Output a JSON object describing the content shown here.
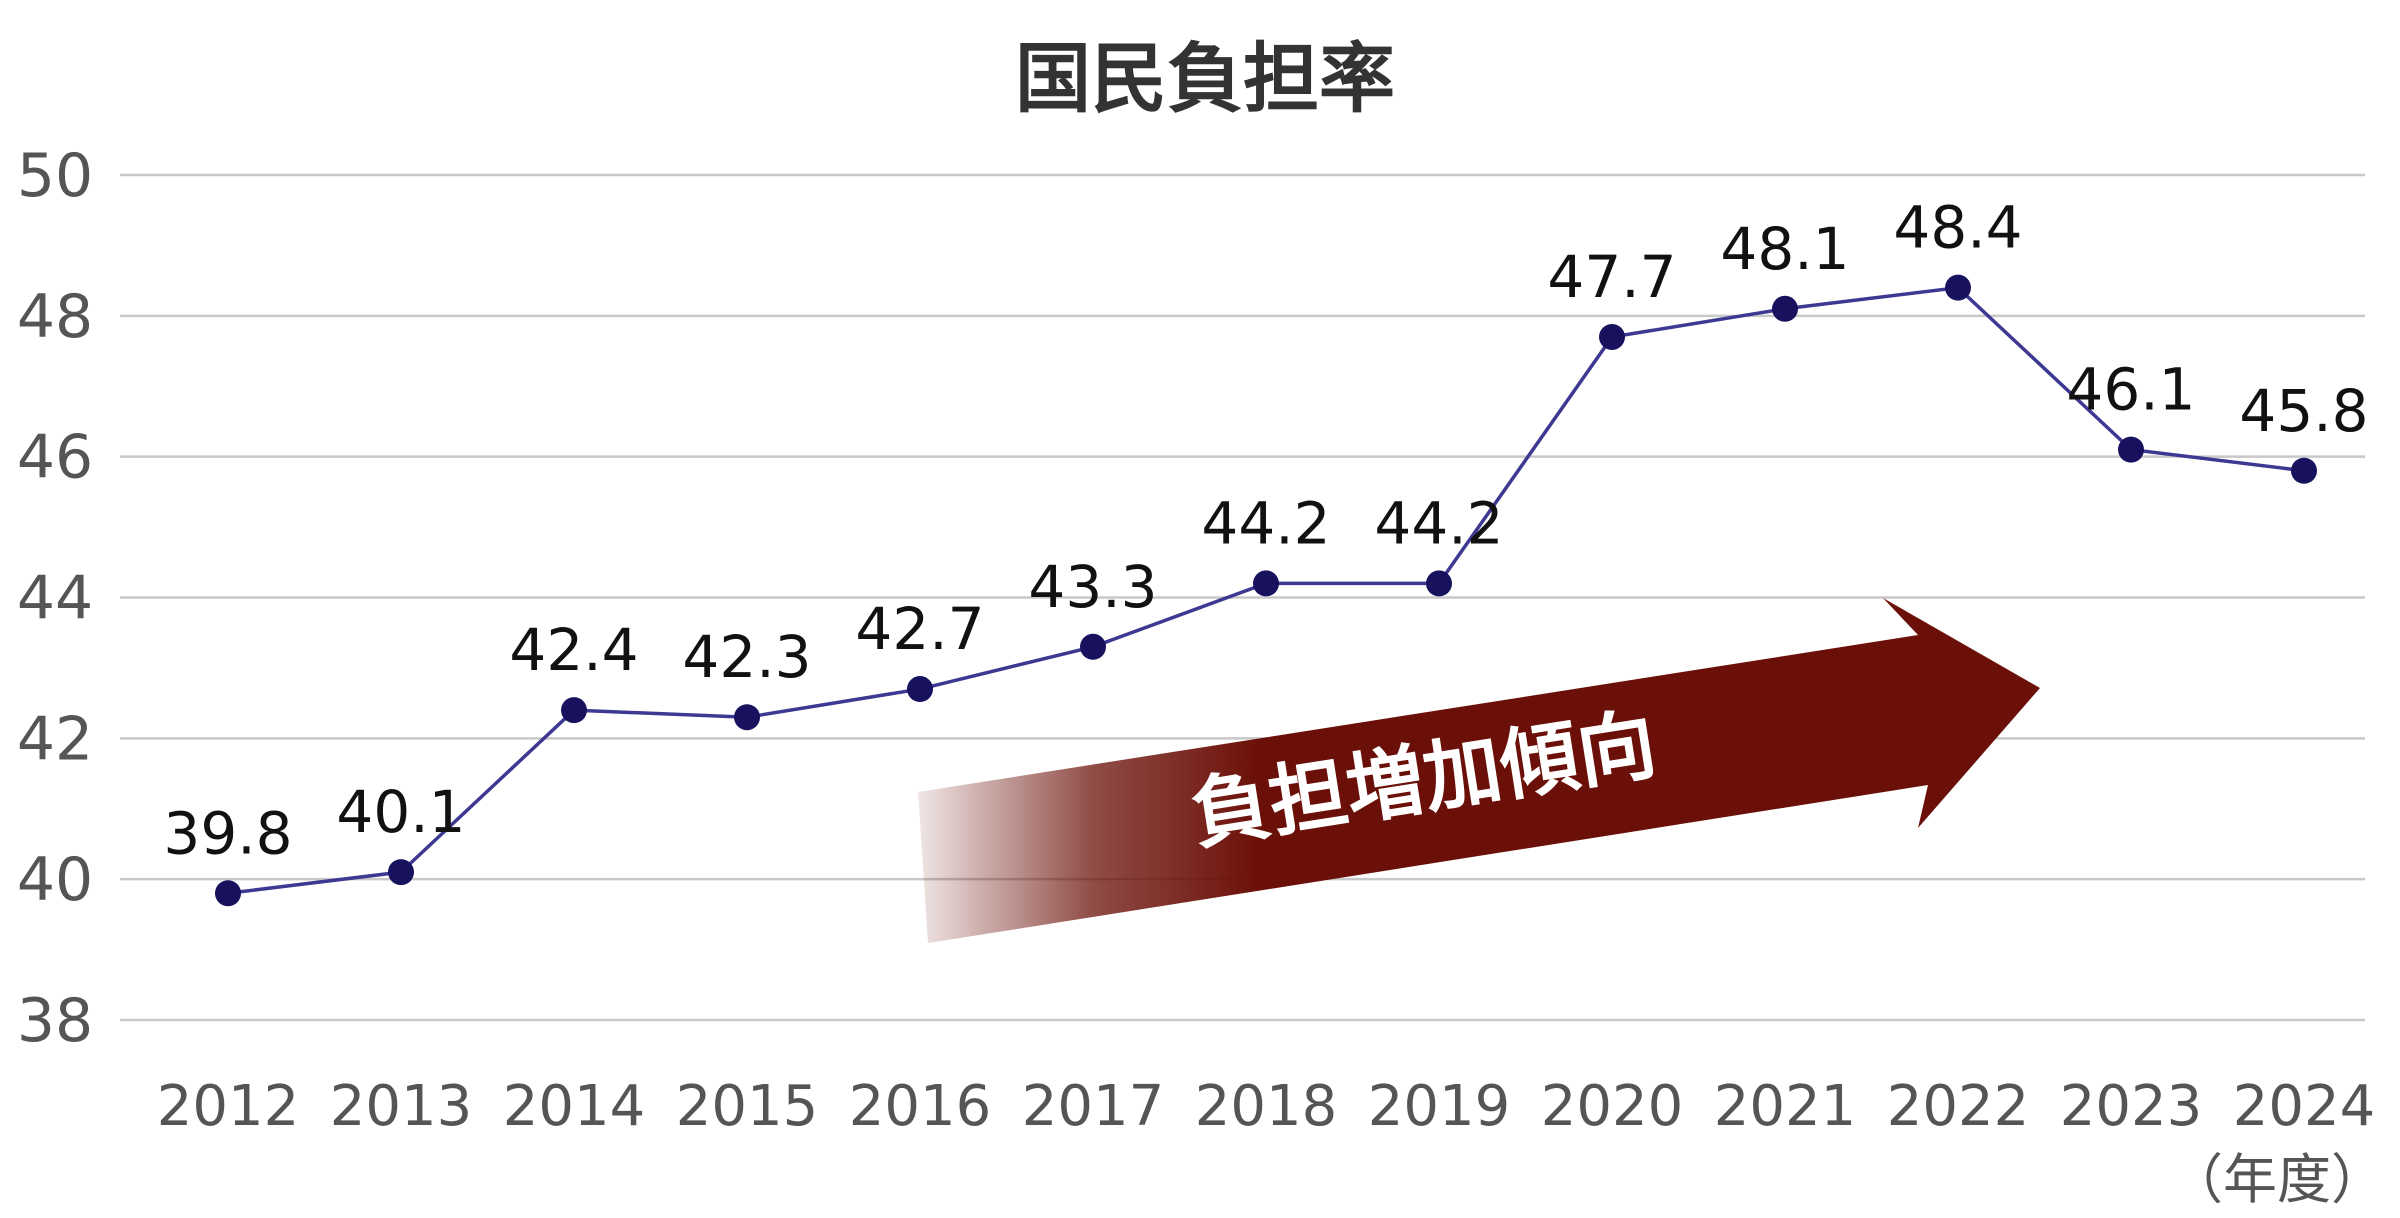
{
  "chart_data": {
    "type": "line",
    "title": "国民負担率",
    "xlabel": "",
    "ylabel": "",
    "x_unit": "（年度）",
    "categories": [
      "2012",
      "2013",
      "2014",
      "2015",
      "2016",
      "2017",
      "2018",
      "2019",
      "2020",
      "2021",
      "2022",
      "2023",
      "2024"
    ],
    "series": [
      {
        "values": [
          39.8,
          40.1,
          42.4,
          42.3,
          42.7,
          43.3,
          44.2,
          44.2,
          47.7,
          48.1,
          48.4,
          46.1,
          45.8
        ]
      }
    ],
    "data_labels": [
      "39.8",
      "40.1",
      "42.4",
      "42.3",
      "42.7",
      "43.3",
      "44.2",
      "44.2",
      "47.7",
      "48.1",
      "48.4",
      "46.1",
      "45.8"
    ],
    "ylim": [
      38,
      50
    ],
    "yticks": [
      38,
      40,
      42,
      44,
      46,
      48,
      50
    ],
    "grid": true,
    "legend": "none",
    "annotation": "負担増加傾向",
    "colors": {
      "line": "#3d3891",
      "marker": "#17115e",
      "grid": "#c8c8c8",
      "arrow": "#6b1008"
    }
  }
}
